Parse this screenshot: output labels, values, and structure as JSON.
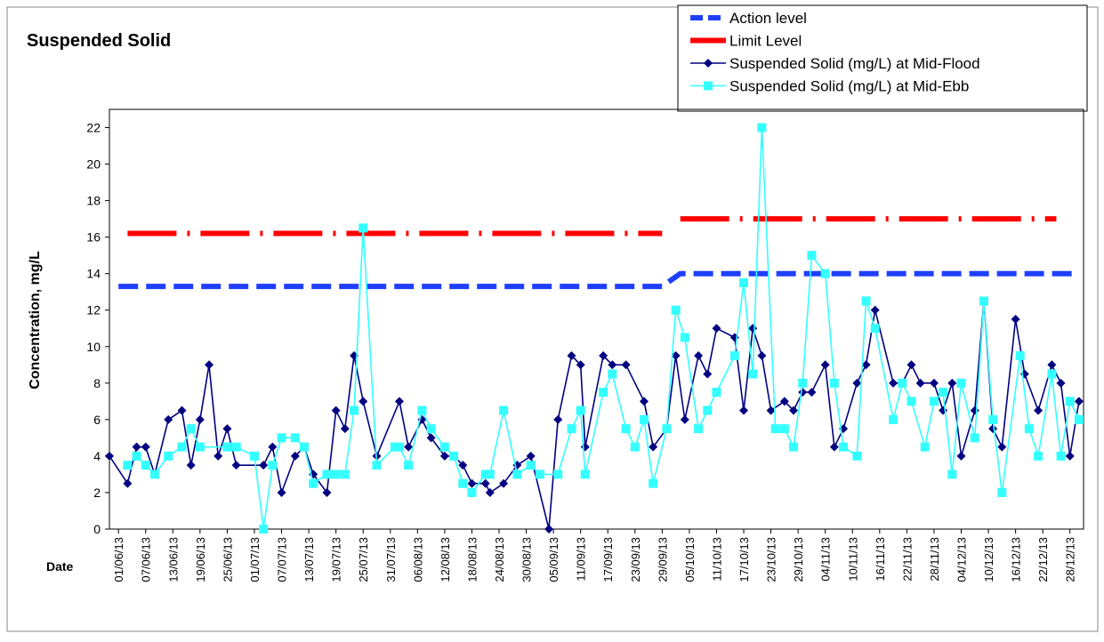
{
  "chart_data": {
    "type": "line",
    "title": "Suspended Solid",
    "ylabel": "Concentration, mg/L",
    "xlabel": "Date",
    "xlim": [
      "30/05/13",
      "31/12/13"
    ],
    "ylim": [
      0,
      23
    ],
    "yticks": [
      0,
      2,
      4,
      6,
      8,
      10,
      12,
      14,
      16,
      18,
      20,
      22
    ],
    "xticks": [
      "01/06/13",
      "07/06/13",
      "13/06/13",
      "19/06/13",
      "25/06/13",
      "01/07/13",
      "07/07/13",
      "13/07/13",
      "19/07/13",
      "25/07/13",
      "31/07/13",
      "06/08/13",
      "12/08/13",
      "18/08/13",
      "24/08/13",
      "30/08/13",
      "05/09/13",
      "11/09/13",
      "17/09/13",
      "23/09/13",
      "29/09/13",
      "05/10/13",
      "11/10/13",
      "17/10/13",
      "23/10/13",
      "29/10/13",
      "04/11/13",
      "10/11/13",
      "16/11/13",
      "22/11/13",
      "28/11/13",
      "04/12/13",
      "10/12/13",
      "16/12/13",
      "22/12/13",
      "28/12/13"
    ],
    "grid": false,
    "legend": "top-right",
    "series": [
      {
        "name": "Action level",
        "color": "#1f3fff",
        "style": "dashed",
        "x": [
          "01/06/13",
          "29/09/13",
          "03/10/13",
          "29/12/13"
        ],
        "values": [
          13.3,
          13.3,
          14,
          14
        ]
      },
      {
        "name": "Limit Level",
        "color": "#ff0000",
        "style": "dash-dot",
        "x": [
          "03/06/13",
          "29/09/13",
          "01/10/13",
          "03/10/13",
          "25/12/13"
        ],
        "values": [
          16.2,
          16.2,
          null,
          17,
          17
        ]
      },
      {
        "name": "Suspended Solid (mg/L) at Mid-Flood",
        "color": "#000080",
        "marker": "diamond",
        "x": [
          "30/05/13",
          "03/06/13",
          "05/06/13",
          "07/06/13",
          "09/06/13",
          "12/06/13",
          "15/06/13",
          "17/06/13",
          "19/06/13",
          "21/06/13",
          "23/06/13",
          "25/06/13",
          "27/06/13",
          "03/07/13",
          "05/07/13",
          "07/07/13",
          "10/07/13",
          "12/07/13",
          "14/07/13",
          "17/07/13",
          "19/07/13",
          "21/07/13",
          "23/07/13",
          "25/07/13",
          "28/07/13",
          "02/08/13",
          "04/08/13",
          "07/08/13",
          "09/08/13",
          "12/08/13",
          "14/08/13",
          "16/08/13",
          "18/08/13",
          "21/08/13",
          "22/08/13",
          "25/08/13",
          "28/08/13",
          "31/08/13",
          "04/09/13",
          "06/09/13",
          "09/09/13",
          "11/09/13",
          "12/09/13",
          "16/09/13",
          "18/09/13",
          "21/09/13",
          "25/09/13",
          "27/09/13",
          "30/09/13",
          "02/10/13",
          "04/10/13",
          "07/10/13",
          "09/10/13",
          "11/10/13",
          "15/10/13",
          "17/10/13",
          "19/10/13",
          "21/10/13",
          "23/10/13",
          "26/10/13",
          "28/10/13",
          "30/10/13",
          "01/11/13",
          "04/11/13",
          "06/11/13",
          "08/11/13",
          "11/11/13",
          "13/11/13",
          "15/11/13",
          "19/11/13",
          "21/11/13",
          "23/11/13",
          "25/11/13",
          "28/11/13",
          "30/11/13",
          "02/12/13",
          "04/12/13",
          "07/12/13",
          "09/12/13",
          "11/12/13",
          "13/12/13",
          "16/12/13",
          "18/12/13",
          "21/12/13",
          "24/12/13",
          "26/12/13",
          "28/12/13",
          "30/12/13"
        ],
        "values": [
          4,
          2.5,
          4.5,
          4.5,
          3,
          6,
          6.5,
          3.5,
          6,
          9,
          4,
          5.5,
          3.5,
          3.5,
          4.5,
          2,
          4,
          4.5,
          3,
          2,
          6.5,
          5.5,
          9.5,
          7,
          4,
          7,
          4.5,
          6,
          5,
          4,
          4,
          3.5,
          2.5,
          2.5,
          2,
          2.5,
          3.5,
          4,
          0,
          6,
          9.5,
          9,
          4.5,
          9.5,
          9,
          9,
          7,
          4.5,
          5.5,
          9.5,
          6,
          9.5,
          8.5,
          11,
          10.5,
          6.5,
          11,
          9.5,
          6.5,
          7,
          6.5,
          7.5,
          7.5,
          9,
          4.5,
          5.5,
          8,
          9,
          12,
          8,
          8,
          9,
          8,
          8,
          6.5,
          8,
          4,
          6.5,
          12.5,
          5.5,
          4.5,
          11.5,
          8.5,
          6.5,
          9,
          8,
          4,
          7
        ]
      },
      {
        "name": "Suspended Solid (mg/L) at Mid-Ebb",
        "color": "#33ffff",
        "marker": "square",
        "x": [
          "03/06/13",
          "05/06/13",
          "07/06/13",
          "09/06/13",
          "12/06/13",
          "15/06/13",
          "17/06/13",
          "19/06/13",
          "25/06/13",
          "27/06/13",
          "01/07/13",
          "03/07/13",
          "05/07/13",
          "07/07/13",
          "10/07/13",
          "12/07/13",
          "14/07/13",
          "17/07/13",
          "19/07/13",
          "21/07/13",
          "23/07/13",
          "25/07/13",
          "28/07/13",
          "01/08/13",
          "02/08/13",
          "04/08/13",
          "07/08/13",
          "09/08/13",
          "12/08/13",
          "14/08/13",
          "16/08/13",
          "18/08/13",
          "21/08/13",
          "22/08/13",
          "25/08/13",
          "28/08/13",
          "31/08/13",
          "02/09/13",
          "06/09/13",
          "09/09/13",
          "11/09/13",
          "12/09/13",
          "16/09/13",
          "18/09/13",
          "21/09/13",
          "23/09/13",
          "25/09/13",
          "27/09/13",
          "30/09/13",
          "02/10/13",
          "04/10/13",
          "07/10/13",
          "09/10/13",
          "11/10/13",
          "15/10/13",
          "17/10/13",
          "19/10/13",
          "21/10/13",
          "24/10/13",
          "26/10/13",
          "28/10/13",
          "30/10/13",
          "01/11/13",
          "04/11/13",
          "06/11/13",
          "08/11/13",
          "11/11/13",
          "13/11/13",
          "15/11/13",
          "19/11/13",
          "21/11/13",
          "23/11/13",
          "26/11/13",
          "28/11/13",
          "30/11/13",
          "02/12/13",
          "04/12/13",
          "07/12/13",
          "09/12/13",
          "11/12/13",
          "13/12/13",
          "17/12/13",
          "19/12/13",
          "21/12/13",
          "24/12/13",
          "26/12/13",
          "28/12/13",
          "30/12/13"
        ],
        "values": [
          3.5,
          4,
          3.5,
          3,
          4,
          4.5,
          5.5,
          4.5,
          4.5,
          4.5,
          4,
          0,
          3.5,
          5,
          5,
          4.5,
          2.5,
          3,
          3,
          3,
          6.5,
          16.5,
          3.5,
          4.5,
          4.5,
          3.5,
          6.5,
          5.5,
          4.5,
          4,
          2.5,
          2,
          3,
          3,
          6.5,
          3,
          3.5,
          3,
          3,
          5.5,
          6.5,
          3,
          7.5,
          8.5,
          5.5,
          4.5,
          6,
          2.5,
          5.5,
          12,
          10.5,
          5.5,
          6.5,
          7.5,
          9.5,
          13.5,
          8.5,
          22,
          5.5,
          5.5,
          4.5,
          8,
          15,
          14,
          8,
          4.5,
          4,
          12.5,
          11,
          6,
          8,
          7,
          4.5,
          7,
          7.5,
          3,
          8,
          5,
          12.5,
          6,
          2,
          9.5,
          5.5,
          4,
          8.5,
          4,
          7,
          6
        ]
      }
    ]
  }
}
